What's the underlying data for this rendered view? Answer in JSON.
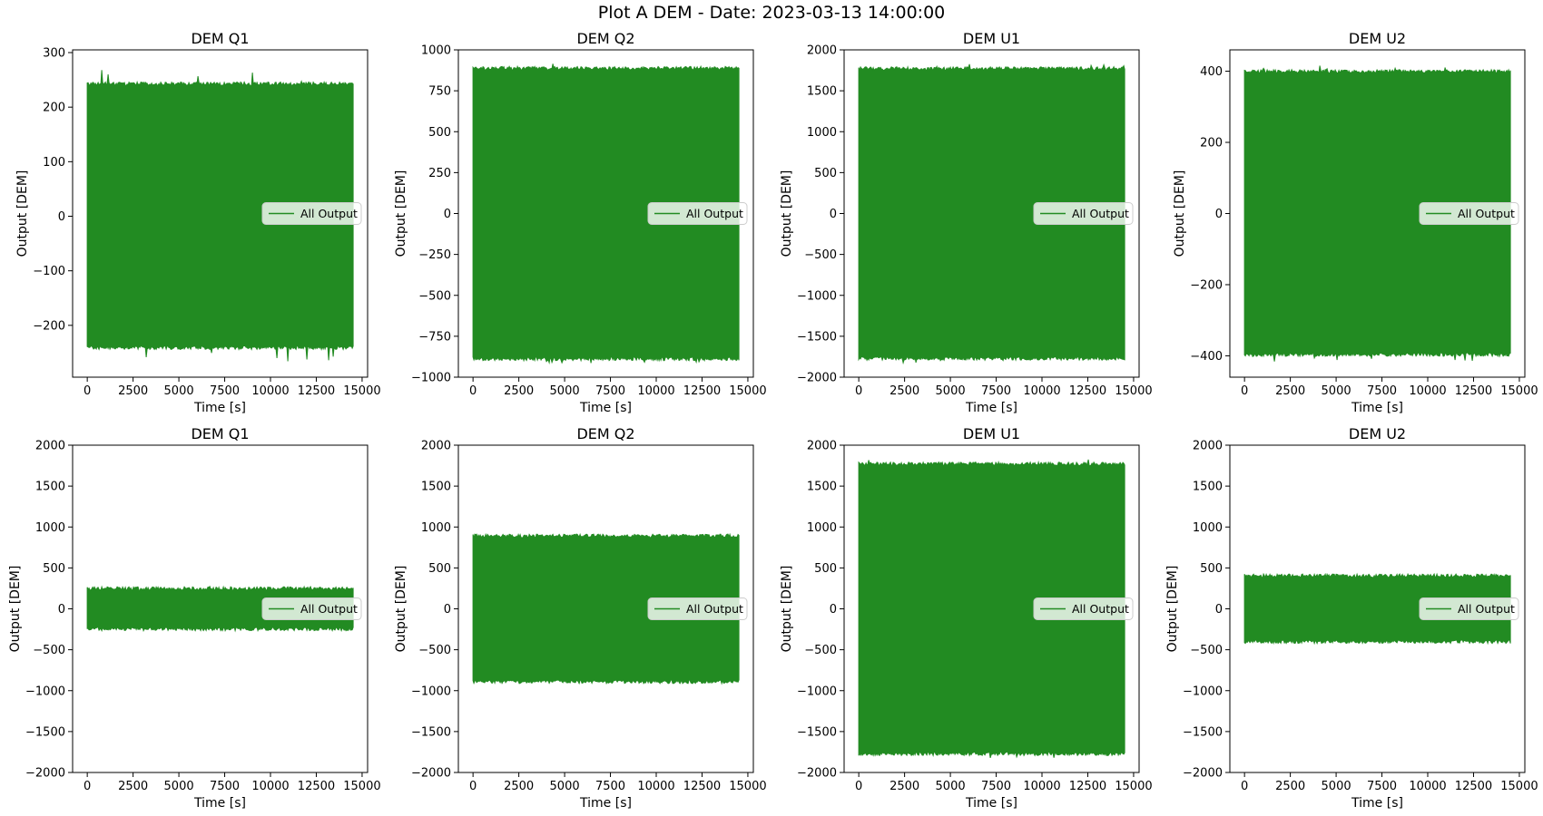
{
  "figure": {
    "suptitle": "Plot A DEM - Date: 2023-03-13 14:00:00",
    "line_color": "#228b22"
  },
  "chart_data": [
    {
      "type": "line",
      "title": "DEM Q1",
      "xlabel": "Time [s]",
      "ylabel": "Output [DEM]",
      "xlim": [
        -800,
        15300
      ],
      "ylim": [
        -295,
        305
      ],
      "xticks": [
        0,
        2500,
        5000,
        7500,
        10000,
        12500,
        15000
      ],
      "yticks": [
        -200,
        -100,
        0,
        100,
        200,
        300
      ],
      "legend": {
        "label": "All Output",
        "loc": "center right"
      },
      "series": [
        {
          "name": "All Output",
          "x_range": [
            0,
            14500
          ],
          "min": -270,
          "max": 275,
          "band_low": -240,
          "band_high": 242
        }
      ]
    },
    {
      "type": "line",
      "title": "DEM Q2",
      "xlabel": "Time [s]",
      "ylabel": "Output [DEM]",
      "xlim": [
        -800,
        15300
      ],
      "ylim": [
        -1000,
        1000
      ],
      "xticks": [
        0,
        2500,
        5000,
        7500,
        10000,
        12500,
        15000
      ],
      "yticks": [
        -1000,
        -750,
        -500,
        -250,
        0,
        250,
        500,
        750,
        1000
      ],
      "legend": {
        "label": "All Output",
        "loc": "center right"
      },
      "series": [
        {
          "name": "All Output",
          "x_range": [
            0,
            14500
          ],
          "min": -915,
          "max": 915,
          "band_low": -885,
          "band_high": 885
        }
      ]
    },
    {
      "type": "line",
      "title": "DEM U1",
      "xlabel": "Time [s]",
      "ylabel": "Output [DEM]",
      "xlim": [
        -800,
        15300
      ],
      "ylim": [
        -2000,
        2000
      ],
      "xticks": [
        0,
        2500,
        5000,
        7500,
        10000,
        12500,
        15000
      ],
      "yticks": [
        -2000,
        -1500,
        -1000,
        -500,
        0,
        500,
        1000,
        1500,
        2000
      ],
      "legend": {
        "label": "All Output",
        "loc": "center right"
      },
      "series": [
        {
          "name": "All Output",
          "x_range": [
            0,
            14500
          ],
          "min": -1830,
          "max": 1830,
          "band_low": -1765,
          "band_high": 1765
        }
      ]
    },
    {
      "type": "line",
      "title": "DEM U2",
      "xlabel": "Time [s]",
      "ylabel": "Output [DEM]",
      "xlim": [
        -800,
        15300
      ],
      "ylim": [
        -460,
        460
      ],
      "xticks": [
        0,
        2500,
        5000,
        7500,
        10000,
        12500,
        15000
      ],
      "yticks": [
        -400,
        -200,
        0,
        200,
        400
      ],
      "legend": {
        "label": "All Output",
        "loc": "center right"
      },
      "series": [
        {
          "name": "All Output",
          "x_range": [
            0,
            14500
          ],
          "min": -420,
          "max": 425,
          "band_low": -395,
          "band_high": 398
        }
      ]
    },
    {
      "type": "line",
      "title": "DEM Q1",
      "xlabel": "Time [s]",
      "ylabel": "Output [DEM]",
      "xlim": [
        -800,
        15300
      ],
      "ylim": [
        -2000,
        2000
      ],
      "xticks": [
        0,
        2500,
        5000,
        7500,
        10000,
        12500,
        15000
      ],
      "yticks": [
        -2000,
        -1500,
        -1000,
        -500,
        0,
        500,
        1000,
        1500,
        2000
      ],
      "legend": {
        "label": "All Output",
        "loc": "center right"
      },
      "series": [
        {
          "name": "All Output",
          "x_range": [
            0,
            14500
          ],
          "min": -270,
          "max": 275,
          "band_low": -240,
          "band_high": 242
        }
      ]
    },
    {
      "type": "line",
      "title": "DEM Q2",
      "xlabel": "Time [s]",
      "ylabel": "Output [DEM]",
      "xlim": [
        -800,
        15300
      ],
      "ylim": [
        -2000,
        2000
      ],
      "xticks": [
        0,
        2500,
        5000,
        7500,
        10000,
        12500,
        15000
      ],
      "yticks": [
        -2000,
        -1500,
        -1000,
        -500,
        0,
        500,
        1000,
        1500,
        2000
      ],
      "legend": {
        "label": "All Output",
        "loc": "center right"
      },
      "series": [
        {
          "name": "All Output",
          "x_range": [
            0,
            14500
          ],
          "min": -915,
          "max": 915,
          "band_low": -885,
          "band_high": 885
        }
      ]
    },
    {
      "type": "line",
      "title": "DEM U1",
      "xlabel": "Time [s]",
      "ylabel": "Output [DEM]",
      "xlim": [
        -800,
        15300
      ],
      "ylim": [
        -2000,
        2000
      ],
      "xticks": [
        0,
        2500,
        5000,
        7500,
        10000,
        12500,
        15000
      ],
      "yticks": [
        -2000,
        -1500,
        -1000,
        -500,
        0,
        500,
        1000,
        1500,
        2000
      ],
      "legend": {
        "label": "All Output",
        "loc": "center right"
      },
      "series": [
        {
          "name": "All Output",
          "x_range": [
            0,
            14500
          ],
          "min": -1830,
          "max": 1830,
          "band_low": -1765,
          "band_high": 1765
        }
      ]
    },
    {
      "type": "line",
      "title": "DEM U2",
      "xlabel": "Time [s]",
      "ylabel": "Output [DEM]",
      "xlim": [
        -800,
        15300
      ],
      "ylim": [
        -2000,
        2000
      ],
      "xticks": [
        0,
        2500,
        5000,
        7500,
        10000,
        12500,
        15000
      ],
      "yticks": [
        -2000,
        -1500,
        -1000,
        -500,
        0,
        500,
        1000,
        1500,
        2000
      ],
      "legend": {
        "label": "All Output",
        "loc": "center right"
      },
      "series": [
        {
          "name": "All Output",
          "x_range": [
            0,
            14500
          ],
          "min": -420,
          "max": 425,
          "band_low": -395,
          "band_high": 398
        }
      ]
    }
  ]
}
